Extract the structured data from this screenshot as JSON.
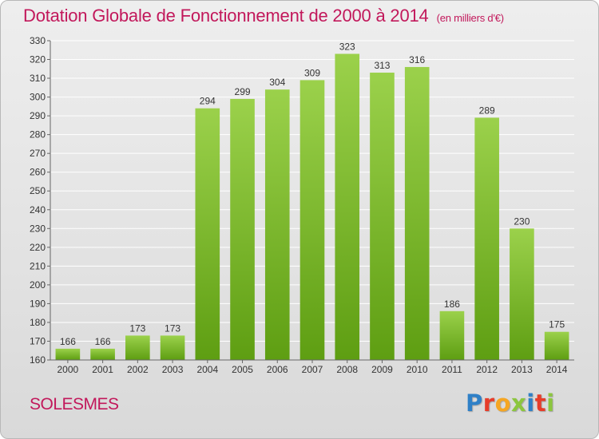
{
  "title": "Dotation Globale de Fonctionnement de 2000 à 2014",
  "unit": "(en milliers d'€)",
  "commune": "SOLESMES",
  "logo": {
    "text": "Proxiti",
    "colors": [
      "#2f80c7",
      "#e63d2a",
      "#f5a623",
      "#8cc63f",
      "#2f80c7",
      "#e63d2a",
      "#8cc63f"
    ]
  },
  "colors": {
    "title": "#c2185b",
    "bar_light": "#9bd14b",
    "bar_dark": "#5e9e12",
    "grid": "#ffffff",
    "axis": "#666666"
  },
  "chart_data": {
    "type": "bar",
    "title": "Dotation Globale de Fonctionnement de 2000 à 2014",
    "categories": [
      "2000",
      "2001",
      "2002",
      "2003",
      "2004",
      "2005",
      "2006",
      "2007",
      "2008",
      "2009",
      "2010",
      "2011",
      "2012",
      "2013",
      "2014"
    ],
    "values": [
      166,
      166,
      173,
      173,
      294,
      299,
      304,
      309,
      323,
      313,
      316,
      186,
      289,
      230,
      175
    ],
    "ylim": [
      160,
      330
    ],
    "ytick_step": 10,
    "grid": true,
    "legend": "none",
    "xlabel": "",
    "ylabel": ""
  }
}
